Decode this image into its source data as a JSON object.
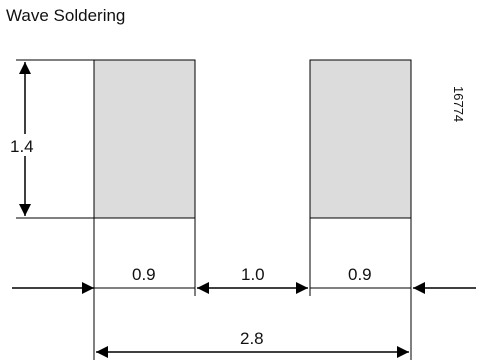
{
  "title": "Wave Soldering",
  "figure_ref": "16774",
  "pads": {
    "fill_color": "#dcdcdc",
    "height": "1.4",
    "left_width": "0.9",
    "gap": "1.0",
    "right_width": "0.9",
    "total_width": "2.8"
  }
}
